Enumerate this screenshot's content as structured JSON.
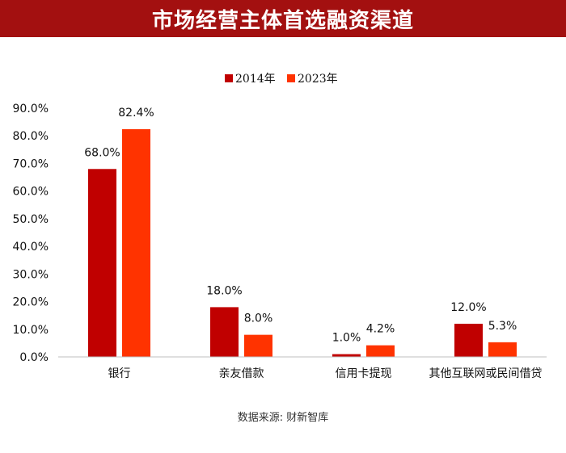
{
  "banner": {
    "title": "市场经营主体首选融资渠道"
  },
  "colors": {
    "banner": "#a31010",
    "series_2014": "#c00000",
    "series_2023": "#ff3300"
  },
  "chart_data": {
    "type": "bar",
    "categories": [
      "银行",
      "亲友借款",
      "信用卡提现",
      "其他互联网或民间借贷"
    ],
    "series": [
      {
        "name": "2014年",
        "values": [
          68.0,
          18.0,
          1.0,
          12.0
        ],
        "labels": [
          "68.0%",
          "18.0%",
          "1.0%",
          "12.0%"
        ],
        "color": "#c00000"
      },
      {
        "name": "2023年",
        "values": [
          82.4,
          8.0,
          4.2,
          5.3
        ],
        "labels": [
          "82.4%",
          "8.0%",
          "4.2%",
          "5.3%"
        ],
        "color": "#ff3300"
      }
    ],
    "yticks": [
      "0.0%",
      "10.0%",
      "20.0%",
      "30.0%",
      "40.0%",
      "50.0%",
      "60.0%",
      "70.0%",
      "80.0%",
      "90.0%"
    ],
    "ylim": [
      0,
      90
    ],
    "legend_position": "top-center",
    "grid": false
  },
  "source": "数据来源: 财新智库"
}
